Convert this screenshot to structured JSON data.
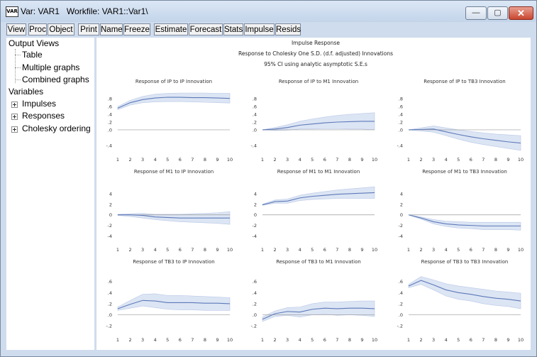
{
  "window": {
    "app_icon": "VAR",
    "title": "Var: VAR1   Workfile: VAR1::Var1\\",
    "min_glyph": "—",
    "max_glyph": "▢",
    "close_glyph": "✕"
  },
  "toolbar": [
    "View",
    "Proc",
    "Object",
    "Print",
    "Name",
    "Freeze",
    "Estimate",
    "Forecast",
    "Stats",
    "Impulse",
    "Resids"
  ],
  "sidebar": {
    "output_views": "Output Views",
    "table": "Table",
    "multiple_graphs": "Multiple graphs",
    "combined_graphs": "Combined graphs",
    "variables": "Variables",
    "impulses": "Impulses",
    "responses": "Responses",
    "cholesky": "Cholesky ordering"
  },
  "graph_header": {
    "title": "Impulse Response",
    "subtitle": "Response to Cholesky One S.D. (d.f. adjusted) Innovations",
    "ci_note": "95% CI using analytic asymptotic S.E.s"
  },
  "colors": {
    "line": "#5d79b8",
    "band": "#dce5f4",
    "band_edge": "#b9c8e6",
    "zero": "#9a9a9a"
  },
  "chart_data": [
    {
      "type": "line",
      "title": "Response of IP to IP Innovation",
      "x": [
        1,
        2,
        3,
        4,
        5,
        6,
        7,
        8,
        9,
        10
      ],
      "yticks": [
        ".8",
        ".6",
        ".4",
        ".2",
        ".0",
        "-.4"
      ],
      "ytick_values": [
        0.8,
        0.6,
        0.4,
        0.2,
        0.0,
        -0.4
      ],
      "ylim": [
        -0.55,
        0.95
      ],
      "values": [
        0.56,
        0.7,
        0.78,
        0.82,
        0.84,
        0.84,
        0.83,
        0.83,
        0.82,
        0.81
      ],
      "upper": [
        0.6,
        0.76,
        0.86,
        0.92,
        0.94,
        0.95,
        0.95,
        0.95,
        0.94,
        0.94
      ],
      "lower": [
        0.52,
        0.64,
        0.7,
        0.72,
        0.73,
        0.73,
        0.72,
        0.71,
        0.7,
        0.69
      ]
    },
    {
      "type": "line",
      "title": "Response of IP to M1 Innovation",
      "x": [
        1,
        2,
        3,
        4,
        5,
        6,
        7,
        8,
        9,
        10
      ],
      "yticks": [
        ".8",
        ".6",
        ".4",
        ".2",
        ".0",
        "-.4"
      ],
      "ytick_values": [
        0.8,
        0.6,
        0.4,
        0.2,
        0.0,
        -0.4
      ],
      "ylim": [
        -0.55,
        0.95
      ],
      "values": [
        0.0,
        0.02,
        0.06,
        0.12,
        0.15,
        0.18,
        0.2,
        0.21,
        0.22,
        0.22
      ],
      "upper": [
        0.0,
        0.06,
        0.13,
        0.22,
        0.28,
        0.33,
        0.37,
        0.4,
        0.42,
        0.44
      ],
      "lower": [
        0.0,
        -0.02,
        -0.01,
        0.02,
        0.02,
        0.03,
        0.03,
        0.02,
        0.02,
        0.0
      ]
    },
    {
      "type": "line",
      "title": "Response of IP to TB3 Innovation",
      "x": [
        1,
        2,
        3,
        4,
        5,
        6,
        7,
        8,
        9,
        10
      ],
      "yticks": [
        ".8",
        ".6",
        ".4",
        ".2",
        ".0",
        "-.4"
      ],
      "ytick_values": [
        0.8,
        0.6,
        0.4,
        0.2,
        0.0,
        -0.4
      ],
      "ylim": [
        -0.55,
        0.95
      ],
      "values": [
        0.0,
        0.01,
        0.02,
        -0.05,
        -0.12,
        -0.18,
        -0.23,
        -0.27,
        -0.31,
        -0.34
      ],
      "upper": [
        0.0,
        0.05,
        0.1,
        0.05,
        0.0,
        -0.04,
        -0.08,
        -0.11,
        -0.13,
        -0.15
      ],
      "lower": [
        0.0,
        -0.03,
        -0.06,
        -0.15,
        -0.24,
        -0.32,
        -0.38,
        -0.43,
        -0.48,
        -0.53
      ]
    },
    {
      "type": "line",
      "title": "Response of M1 to IP Innovation",
      "x": [
        1,
        2,
        3,
        4,
        5,
        6,
        7,
        8,
        9,
        10
      ],
      "yticks": [
        "4",
        "2",
        "0",
        "-2",
        "-4"
      ],
      "ytick_values": [
        4,
        2,
        0,
        -2,
        -4
      ],
      "ylim": [
        -5,
        6
      ],
      "values": [
        0.0,
        0.0,
        -0.1,
        -0.4,
        -0.5,
        -0.6,
        -0.6,
        -0.6,
        -0.6,
        -0.6
      ],
      "upper": [
        0.1,
        0.2,
        0.3,
        0.1,
        0.1,
        0.1,
        0.2,
        0.3,
        0.4,
        0.6
      ],
      "lower": [
        -0.1,
        -0.3,
        -0.6,
        -0.9,
        -1.1,
        -1.3,
        -1.4,
        -1.5,
        -1.6,
        -1.8
      ]
    },
    {
      "type": "line",
      "title": "Response of M1 to M1 Innovation",
      "x": [
        1,
        2,
        3,
        4,
        5,
        6,
        7,
        8,
        9,
        10
      ],
      "yticks": [
        "4",
        "2",
        "0",
        "-2",
        "-4"
      ],
      "ytick_values": [
        4,
        2,
        0,
        -2,
        -4
      ],
      "ylim": [
        -5,
        6
      ],
      "values": [
        1.9,
        2.5,
        2.6,
        3.2,
        3.5,
        3.7,
        3.9,
        4.0,
        4.1,
        4.2
      ],
      "upper": [
        2.0,
        2.8,
        3.0,
        3.7,
        4.1,
        4.4,
        4.7,
        4.9,
        5.1,
        5.3
      ],
      "lower": [
        1.8,
        2.2,
        2.2,
        2.7,
        2.9,
        3.0,
        3.1,
        3.1,
        3.1,
        3.1
      ]
    },
    {
      "type": "line",
      "title": "Response of M1 to TB3 Innovation",
      "x": [
        1,
        2,
        3,
        4,
        5,
        6,
        7,
        8,
        9,
        10
      ],
      "yticks": [
        "4",
        "2",
        "0",
        "-2",
        "-4"
      ],
      "ytick_values": [
        4,
        2,
        0,
        -2,
        -4
      ],
      "ylim": [
        -5,
        6
      ],
      "values": [
        0.0,
        -0.6,
        -1.3,
        -1.7,
        -1.9,
        -2.0,
        -2.1,
        -2.1,
        -2.1,
        -2.1
      ],
      "upper": [
        0.0,
        -0.4,
        -0.9,
        -1.2,
        -1.3,
        -1.4,
        -1.4,
        -1.4,
        -1.4,
        -1.4
      ],
      "lower": [
        0.0,
        -0.8,
        -1.7,
        -2.2,
        -2.5,
        -2.6,
        -2.8,
        -2.8,
        -2.8,
        -2.9
      ]
    },
    {
      "type": "line",
      "title": "Response of TB3 to IP Innovation",
      "x": [
        1,
        2,
        3,
        4,
        5,
        6,
        7,
        8,
        9,
        10
      ],
      "yticks": [
        ".6",
        ".4",
        ".2",
        ".0",
        "-.2"
      ],
      "ytick_values": [
        0.6,
        0.4,
        0.2,
        0.0,
        -0.2
      ],
      "ylim": [
        -0.3,
        0.75
      ],
      "values": [
        0.11,
        0.19,
        0.26,
        0.25,
        0.22,
        0.22,
        0.22,
        0.21,
        0.21,
        0.2
      ],
      "upper": [
        0.14,
        0.26,
        0.37,
        0.38,
        0.35,
        0.35,
        0.34,
        0.33,
        0.32,
        0.31
      ],
      "lower": [
        0.08,
        0.12,
        0.16,
        0.13,
        0.1,
        0.09,
        0.09,
        0.08,
        0.08,
        0.08
      ]
    },
    {
      "type": "line",
      "title": "Response of TB3 to M1 Innovation",
      "x": [
        1,
        2,
        3,
        4,
        5,
        6,
        7,
        8,
        9,
        10
      ],
      "yticks": [
        ".6",
        ".4",
        ".2",
        ".0",
        "-.2"
      ],
      "ytick_values": [
        0.6,
        0.4,
        0.2,
        0.0,
        -0.2
      ],
      "ylim": [
        -0.3,
        0.75
      ],
      "values": [
        -0.08,
        0.02,
        0.06,
        0.05,
        0.1,
        0.12,
        0.11,
        0.12,
        0.12,
        0.11
      ],
      "upper": [
        -0.04,
        0.07,
        0.13,
        0.14,
        0.2,
        0.23,
        0.23,
        0.24,
        0.25,
        0.25
      ],
      "lower": [
        -0.12,
        -0.03,
        -0.01,
        -0.04,
        0.0,
        0.01,
        -0.01,
        0.0,
        -0.01,
        -0.03
      ]
    },
    {
      "type": "line",
      "title": "Response of TB3 to TB3 Innovation",
      "x": [
        1,
        2,
        3,
        4,
        5,
        6,
        7,
        8,
        9,
        10
      ],
      "yticks": [
        ".6",
        ".4",
        ".2",
        ".0",
        "-.2"
      ],
      "ytick_values": [
        0.6,
        0.4,
        0.2,
        0.0,
        -0.2
      ],
      "ylim": [
        -0.3,
        0.75
      ],
      "values": [
        0.52,
        0.62,
        0.54,
        0.45,
        0.4,
        0.37,
        0.33,
        0.3,
        0.28,
        0.25
      ],
      "upper": [
        0.55,
        0.69,
        0.63,
        0.56,
        0.52,
        0.49,
        0.46,
        0.43,
        0.41,
        0.39
      ],
      "lower": [
        0.49,
        0.55,
        0.45,
        0.34,
        0.28,
        0.25,
        0.2,
        0.17,
        0.15,
        0.11
      ]
    }
  ]
}
